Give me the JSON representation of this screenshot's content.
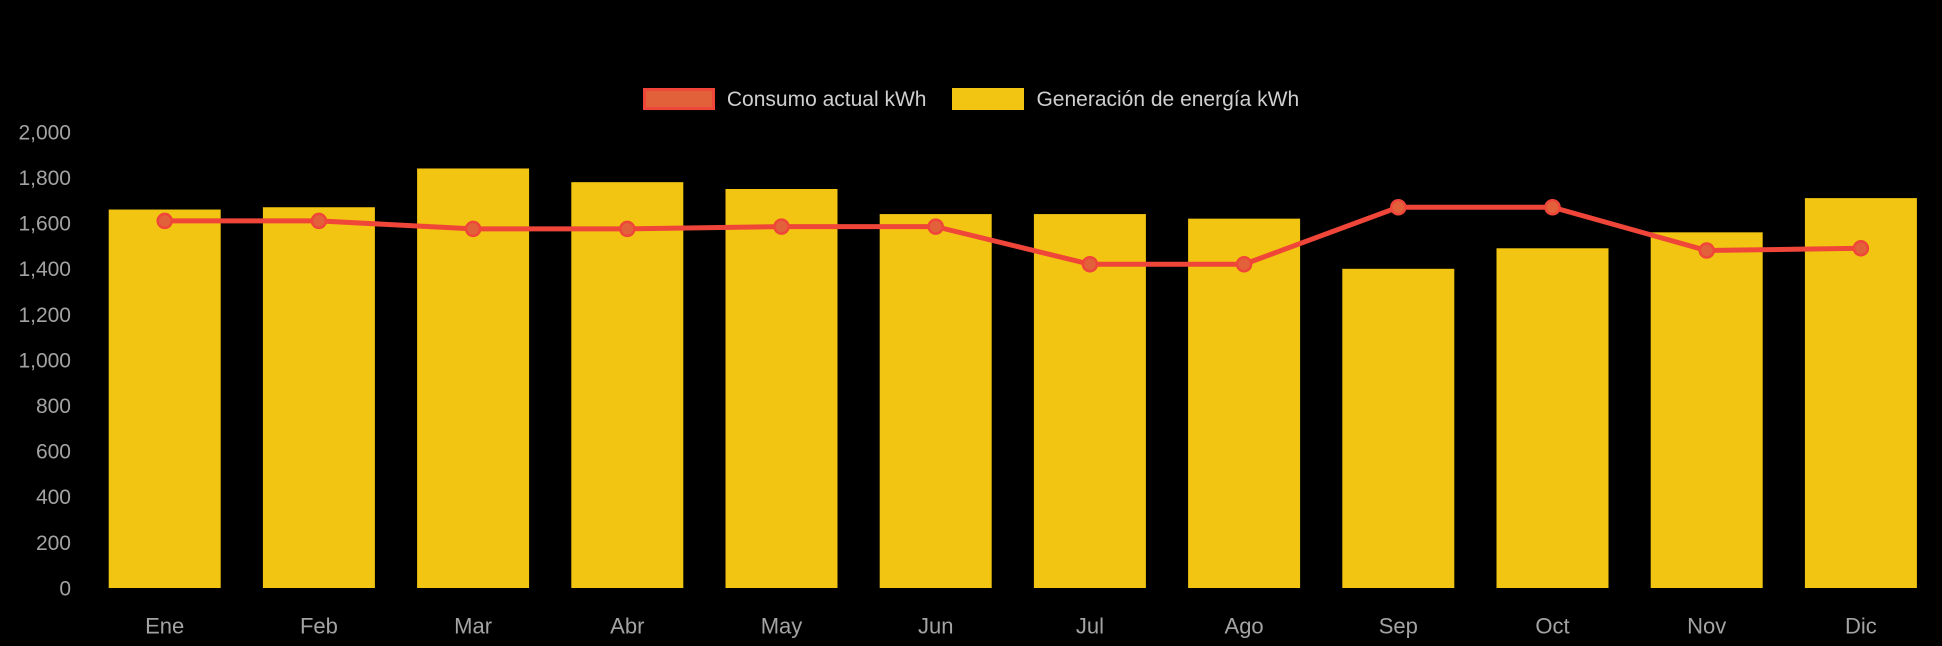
{
  "page": {
    "background": "#000000"
  },
  "legend": {
    "items": [
      {
        "name": "consumo-actual",
        "label": "Consumo actual kWh",
        "swatch_fill": "#e2613b",
        "swatch_border": "#ef4639"
      },
      {
        "name": "generacion-energia",
        "label": "Generación de energía kWh",
        "swatch_fill": "#f2c512",
        "swatch_border": "#f2c512"
      }
    ]
  },
  "chart_data": {
    "type": "bar",
    "subtype": "bar-with-line-overlay",
    "title": "",
    "xlabel": "",
    "ylabel": "",
    "categories": [
      "Ene",
      "Feb",
      "Mar",
      "Abr",
      "May",
      "Jun",
      "Jul",
      "Ago",
      "Sep",
      "Oct",
      "Nov",
      "Dic"
    ],
    "series": [
      {
        "name": "Consumo actual kWh",
        "type": "line",
        "color": "#ef4639",
        "point_fill": "#e2613b",
        "values": [
          1610,
          1610,
          1575,
          1575,
          1585,
          1585,
          1420,
          1420,
          1670,
          1670,
          1480,
          1490
        ]
      },
      {
        "name": "Generación de energía kWh",
        "type": "bar",
        "color": "#f2c512",
        "values": [
          1660,
          1670,
          1840,
          1780,
          1750,
          1640,
          1640,
          1620,
          1400,
          1490,
          1560,
          1710
        ]
      }
    ],
    "ylim": [
      0,
      2000
    ],
    "ytick_step": 200,
    "ytick_labels": [
      "0",
      "200",
      "400",
      "600",
      "800",
      "1,000",
      "1,200",
      "1,400",
      "1,600",
      "1,800",
      "2,000"
    ],
    "grid": false,
    "legend_position": "top",
    "axis_label_color": "#a3a3a3",
    "background": "#000000"
  }
}
